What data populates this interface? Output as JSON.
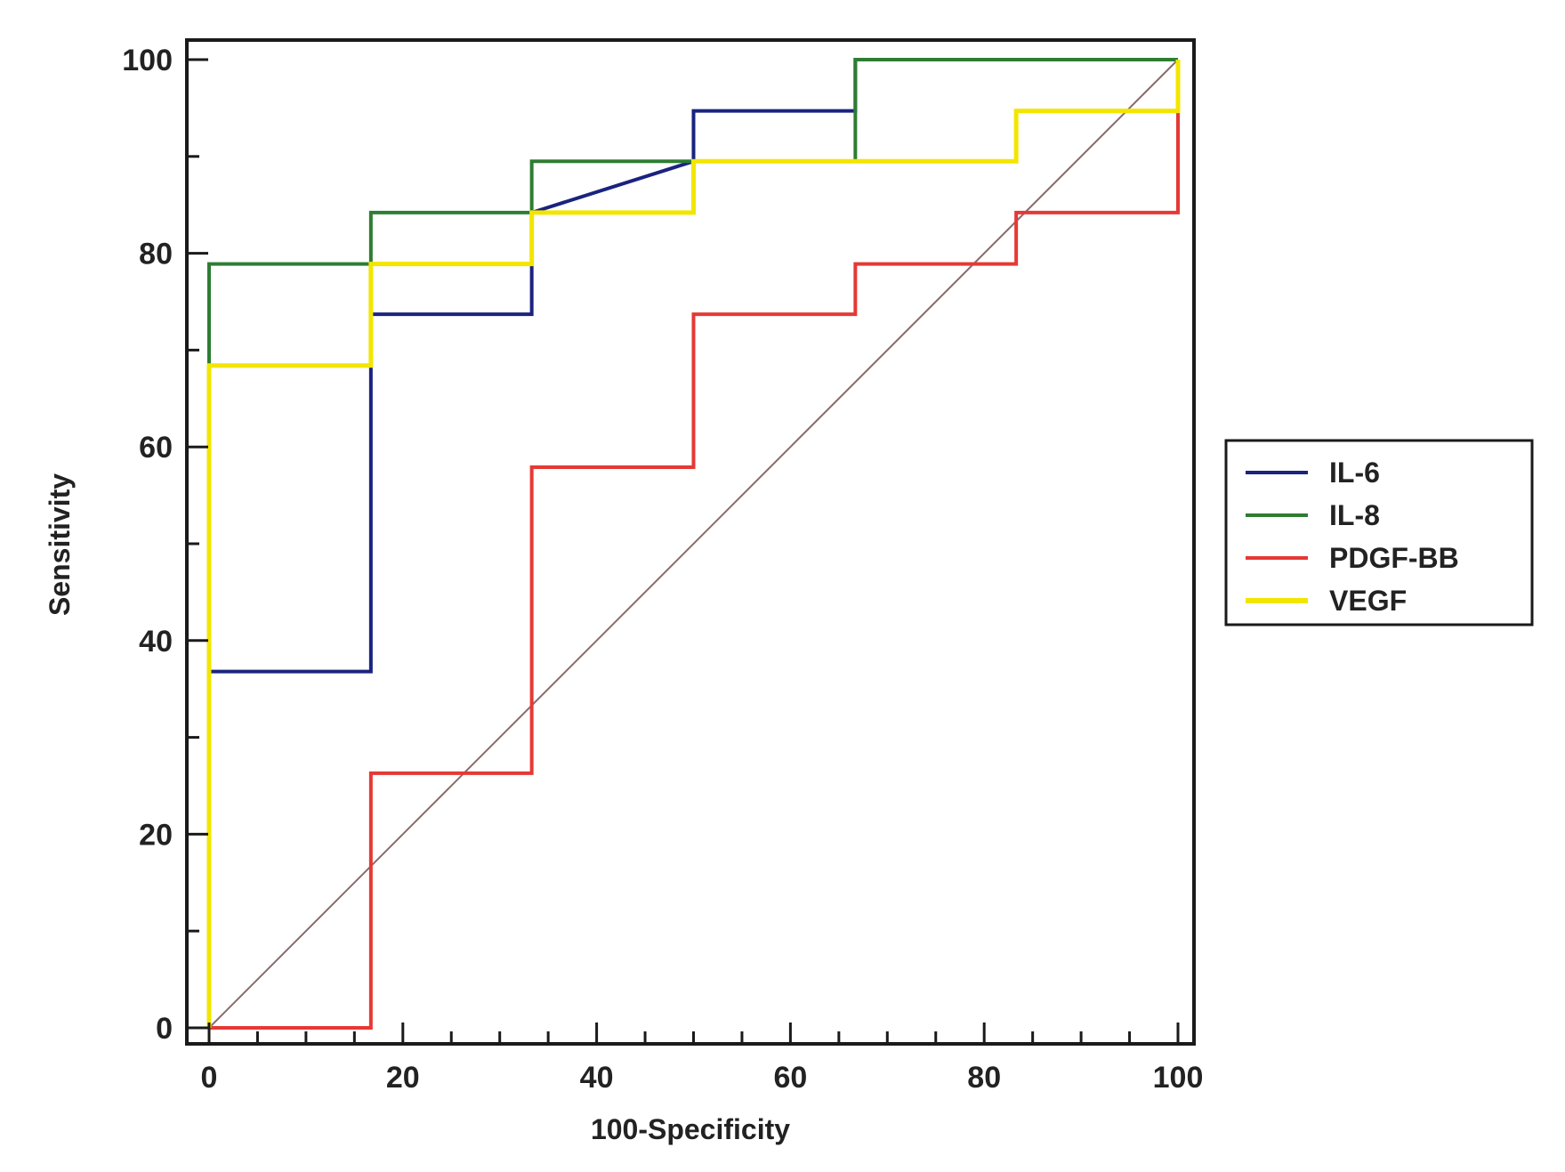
{
  "chart_data": {
    "type": "line",
    "title": "",
    "xlabel": "100-Specificity",
    "ylabel": "Sensitivity",
    "xlim": [
      0,
      100
    ],
    "ylim": [
      0,
      100
    ],
    "x_ticks": [
      0,
      20,
      40,
      60,
      80,
      100
    ],
    "y_ticks": [
      0,
      20,
      40,
      60,
      80,
      100
    ],
    "grid": false,
    "legend_position": "right",
    "reference_line": {
      "name": "diagonal",
      "x": [
        0,
        100
      ],
      "y": [
        0,
        100
      ],
      "color": "#8a6a6a"
    },
    "series": [
      {
        "name": "IL-6",
        "color": "#1a237e",
        "x": [
          0,
          0,
          16.7,
          16.7,
          33.3,
          33.3,
          50,
          50,
          66.7,
          66.7,
          100
        ],
        "y": [
          0,
          36.8,
          36.8,
          73.7,
          73.7,
          84.2,
          89.5,
          94.7,
          94.7,
          100,
          100
        ]
      },
      {
        "name": "IL-8",
        "color": "#2e7d32",
        "x": [
          0,
          0,
          16.7,
          16.7,
          33.3,
          33.3,
          66.7,
          66.7,
          100
        ],
        "y": [
          0,
          78.9,
          78.9,
          84.2,
          84.2,
          89.5,
          89.5,
          100,
          100
        ]
      },
      {
        "name": "PDGF-BB",
        "color": "#e53935",
        "x": [
          0,
          16.7,
          16.7,
          33.3,
          33.3,
          50,
          50,
          66.7,
          66.7,
          83.3,
          83.3,
          100,
          100
        ],
        "y": [
          0,
          0,
          26.3,
          26.3,
          57.9,
          57.9,
          73.7,
          73.7,
          78.9,
          78.9,
          84.2,
          84.2,
          100
        ]
      },
      {
        "name": "VEGF",
        "color": "#f2e600",
        "x": [
          0,
          0,
          16.7,
          16.7,
          33.3,
          33.3,
          50,
          50,
          83.3,
          83.3,
          100,
          100
        ],
        "y": [
          0,
          68.4,
          68.4,
          78.9,
          78.9,
          84.2,
          84.2,
          89.5,
          89.5,
          94.7,
          94.7,
          100
        ]
      }
    ]
  }
}
